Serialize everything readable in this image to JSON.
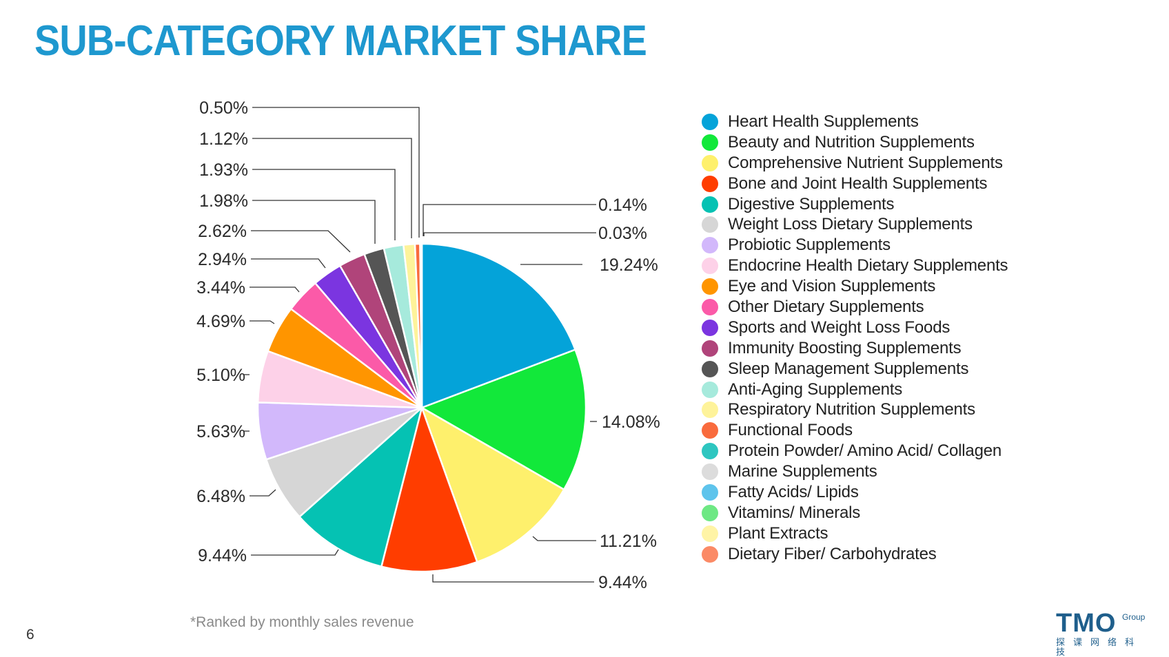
{
  "title": "SUB-CATEGORY MARKET SHARE",
  "footnote": "*Ranked by monthly sales revenue",
  "page_number": "6",
  "logo": {
    "main": "TMO",
    "sub": "Group",
    "cn": "探课网络科技"
  },
  "colors": {
    "title": "#1e98cf",
    "leader_lines": "#333333",
    "slice_border": "#ffffff"
  },
  "chart_data": {
    "type": "pie",
    "start_angle": "12 o'clock, clockwise",
    "legend_position": "right",
    "slices": [
      {
        "name": "Heart Health Supplements",
        "value": 19.24,
        "label": "19.24%",
        "color": "#04a3d9"
      },
      {
        "name": "Beauty and Nutrition Supplements",
        "value": 14.08,
        "label": "14.08%",
        "color": "#12e83a"
      },
      {
        "name": "Comprehensive Nutrient Supplements",
        "value": 11.21,
        "label": "11.21%",
        "color": "#fef06c"
      },
      {
        "name": "Bone and Joint Health Supplements",
        "value": 9.44,
        "label": "9.44%",
        "color": "#ff3d00"
      },
      {
        "name": "Digestive Supplements",
        "value": 9.44,
        "label": "9.44%",
        "color": "#05c2b3"
      },
      {
        "name": "Weight Loss Dietary Supplements",
        "value": 6.48,
        "label": "6.48%",
        "color": "#d6d6d6"
      },
      {
        "name": "Probiotic Supplements",
        "value": 5.63,
        "label": "5.63%",
        "color": "#d2b8fb"
      },
      {
        "name": "Endocrine Health Dietary Supplements",
        "value": 5.1,
        "label": "5.10%",
        "color": "#fdd1e8"
      },
      {
        "name": "Eye and Vision Supplements",
        "value": 4.69,
        "label": "4.69%",
        "color": "#ff9500"
      },
      {
        "name": "Other Dietary Supplements",
        "value": 3.44,
        "label": "3.44%",
        "color": "#fb5aa8"
      },
      {
        "name": "Sports and Weight Loss Foods",
        "value": 2.94,
        "label": "2.94%",
        "color": "#7b35e0"
      },
      {
        "name": "Immunity Boosting Supplements",
        "value": 2.62,
        "label": "2.62%",
        "color": "#b0447a"
      },
      {
        "name": "Sleep Management Supplements",
        "value": 1.98,
        "label": "1.98%",
        "color": "#555555"
      },
      {
        "name": "Anti-Aging Supplements",
        "value": 1.93,
        "label": "1.93%",
        "color": "#a6eadc"
      },
      {
        "name": "Respiratory Nutrition Supplements",
        "value": 1.12,
        "label": "1.12%",
        "color": "#fef39a"
      },
      {
        "name": "Functional Foods",
        "value": 0.5,
        "label": "0.50%",
        "color": "#f96b3d"
      },
      {
        "name": "Protein Powder/ Amino Acid/ Collagen",
        "value": 0.14,
        "label": "0.14%",
        "color": "#2ec6c0"
      },
      {
        "name": "Marine Supplements",
        "value": 0.03,
        "label": "0.03%",
        "color": "#dcdcdc"
      },
      {
        "name": "Fatty Acids/ Lipids",
        "value": null,
        "label": null,
        "color": "#5ec4ec"
      },
      {
        "name": "Vitamins/ Minerals",
        "value": null,
        "label": null,
        "color": "#6ee884"
      },
      {
        "name": "Plant Extracts",
        "value": null,
        "label": null,
        "color": "#fff4a6"
      },
      {
        "name": "Dietary Fiber/ Carbohydrates",
        "value": null,
        "label": null,
        "color": "#fb8a66"
      }
    ]
  }
}
